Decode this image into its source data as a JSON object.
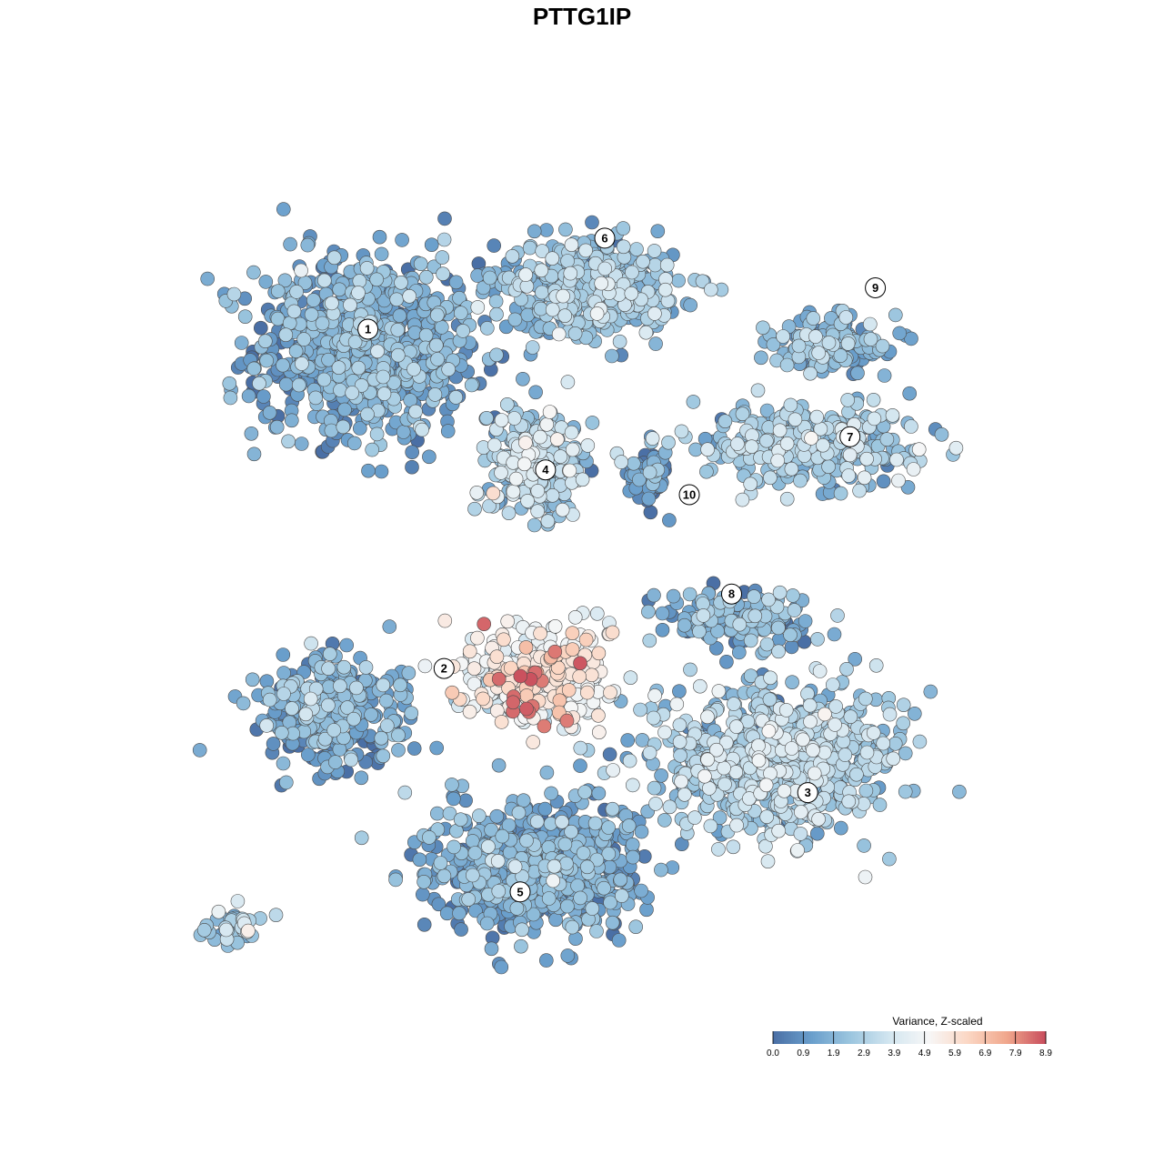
{
  "chart_data": {
    "type": "scatter",
    "title": "PTTG1IP",
    "xlabel": "",
    "ylabel": "",
    "grid": false,
    "axes_visible": false,
    "xlim": [
      0,
      100
    ],
    "ylim": [
      0,
      100
    ],
    "colorbar": {
      "title": "Variance, Z-scaled",
      "min": 0.0,
      "max": 8.9,
      "ticks": [
        "0.0",
        "0.9",
        "1.9",
        "2.9",
        "3.9",
        "4.9",
        "5.9",
        "6.9",
        "7.9",
        "8.9"
      ],
      "palette": [
        "#4a6fa5",
        "#6a9fcc",
        "#9cc6df",
        "#d3e6f0",
        "#f7f7f7",
        "#fbd7c4",
        "#f0a78c",
        "#c84c5c"
      ],
      "placement": "bottom-right"
    },
    "clusters": [
      {
        "label": "1",
        "x": 22,
        "y": 78,
        "spread": [
          12,
          10
        ],
        "count": 900,
        "mean": 1.5
      },
      {
        "label": "6",
        "x": 48,
        "y": 85,
        "spread": [
          10,
          5
        ],
        "count": 420,
        "mean": 2.3
      },
      {
        "label": "4",
        "x": 42,
        "y": 64,
        "spread": [
          5,
          6
        ],
        "count": 300,
        "mean": 2.8
      },
      {
        "label": "10",
        "x": 55,
        "y": 62,
        "spread": [
          2,
          3
        ],
        "count": 70,
        "mean": 0.9
      },
      {
        "label": "9",
        "x": 77,
        "y": 78,
        "spread": [
          7,
          3
        ],
        "count": 160,
        "mean": 1.9
      },
      {
        "label": "7",
        "x": 74,
        "y": 66,
        "spread": [
          12,
          4
        ],
        "count": 330,
        "mean": 2.5
      },
      {
        "label": "8",
        "x": 66,
        "y": 45,
        "spread": [
          8,
          3
        ],
        "count": 160,
        "mean": 1.8
      },
      {
        "label": "2",
        "x": 18,
        "y": 34,
        "spread": [
          8,
          6
        ],
        "count": 330,
        "mean": 1.4
      },
      {
        "label": "3",
        "x": 70,
        "y": 28,
        "spread": [
          13,
          8
        ],
        "count": 780,
        "mean": 2.8
      },
      {
        "label": "5",
        "x": 42,
        "y": 15,
        "spread": [
          11,
          7
        ],
        "count": 700,
        "mean": 1.4
      },
      {
        "label": "",
        "x": 42,
        "y": 38,
        "spread": [
          8,
          5
        ],
        "count": 350,
        "mean": 4.8
      },
      {
        "label": "",
        "x": 6,
        "y": 8,
        "spread": [
          3,
          2
        ],
        "count": 40,
        "mean": 2.5
      }
    ],
    "label_positions": [
      {
        "label": "1",
        "x": 22,
        "y": 80
      },
      {
        "label": "6",
        "x": 50,
        "y": 91
      },
      {
        "label": "9",
        "x": 82,
        "y": 85
      },
      {
        "label": "7",
        "x": 79,
        "y": 67
      },
      {
        "label": "4",
        "x": 43,
        "y": 63
      },
      {
        "label": "10",
        "x": 60,
        "y": 60
      },
      {
        "label": "8",
        "x": 65,
        "y": 48
      },
      {
        "label": "2",
        "x": 31,
        "y": 39
      },
      {
        "label": "3",
        "x": 74,
        "y": 24
      },
      {
        "label": "5",
        "x": 40,
        "y": 12
      }
    ]
  }
}
